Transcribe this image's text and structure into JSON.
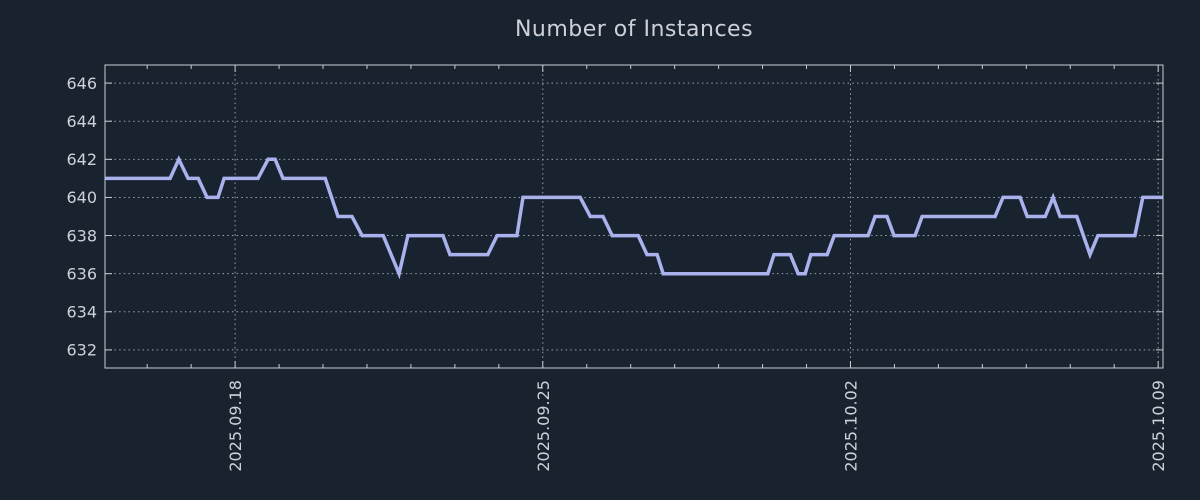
{
  "title": "Number of Instances",
  "colors": {
    "background": "#19222f",
    "line": "#a9b2ec",
    "grid": "#99a1ac",
    "border": "#c9cdd3",
    "text": "#ced2d8"
  },
  "chart_data": {
    "type": "line",
    "title": "Number of Instances",
    "xlabel": "",
    "ylabel": "",
    "x_unit": "days since 2025.09.15",
    "xlim": [
      0.04,
      24.11
    ],
    "ylim": [
      631.05,
      646.95
    ],
    "grid": true,
    "legend_position": "none",
    "y_ticks": [
      632,
      634,
      636,
      638,
      640,
      642,
      644,
      646
    ],
    "x_major_ticks": [
      {
        "day": 3,
        "label": "2025.09.18"
      },
      {
        "day": 10,
        "label": "2025.09.25"
      },
      {
        "day": 17,
        "label": "2025.10.02"
      },
      {
        "day": 24,
        "label": "2025.10.09"
      }
    ],
    "x_minor_tick_days": [
      1,
      2,
      4,
      5,
      6,
      7,
      8,
      9,
      11,
      12,
      13,
      14,
      15,
      16,
      18,
      19,
      20,
      21,
      22,
      23
    ],
    "series": [
      {
        "name": "instances",
        "color": "#a9b2ec",
        "points": [
          [
            0.04,
            641
          ],
          [
            1.52,
            641
          ],
          [
            1.72,
            642
          ],
          [
            1.93,
            641
          ],
          [
            2.16,
            641
          ],
          [
            2.36,
            640
          ],
          [
            2.61,
            640
          ],
          [
            2.75,
            641
          ],
          [
            3.52,
            641
          ],
          [
            3.75,
            642
          ],
          [
            3.91,
            642
          ],
          [
            4.09,
            641
          ],
          [
            5.05,
            641
          ],
          [
            5.34,
            639
          ],
          [
            5.66,
            639
          ],
          [
            5.89,
            638
          ],
          [
            6.37,
            638
          ],
          [
            6.73,
            636
          ],
          [
            6.93,
            638
          ],
          [
            7.73,
            638
          ],
          [
            7.89,
            637
          ],
          [
            8.75,
            637
          ],
          [
            8.96,
            638
          ],
          [
            9.41,
            638
          ],
          [
            9.55,
            640
          ],
          [
            10.85,
            640
          ],
          [
            11.08,
            639
          ],
          [
            11.37,
            639
          ],
          [
            11.58,
            638
          ],
          [
            12.17,
            638
          ],
          [
            12.37,
            637
          ],
          [
            12.6,
            637
          ],
          [
            12.74,
            636
          ],
          [
            15.12,
            636
          ],
          [
            15.26,
            637
          ],
          [
            15.63,
            637
          ],
          [
            15.81,
            636
          ],
          [
            15.97,
            636
          ],
          [
            16.1,
            637
          ],
          [
            16.47,
            637
          ],
          [
            16.63,
            638
          ],
          [
            17.4,
            638
          ],
          [
            17.56,
            639
          ],
          [
            17.83,
            639
          ],
          [
            17.99,
            638
          ],
          [
            18.47,
            638
          ],
          [
            18.63,
            639
          ],
          [
            20.29,
            639
          ],
          [
            20.47,
            640
          ],
          [
            20.86,
            640
          ],
          [
            21.02,
            639
          ],
          [
            21.43,
            639
          ],
          [
            21.61,
            640
          ],
          [
            21.77,
            639
          ],
          [
            22.15,
            639
          ],
          [
            22.45,
            637
          ],
          [
            22.63,
            638
          ],
          [
            23.47,
            638
          ],
          [
            23.65,
            640
          ],
          [
            24.11,
            640
          ]
        ]
      }
    ]
  }
}
